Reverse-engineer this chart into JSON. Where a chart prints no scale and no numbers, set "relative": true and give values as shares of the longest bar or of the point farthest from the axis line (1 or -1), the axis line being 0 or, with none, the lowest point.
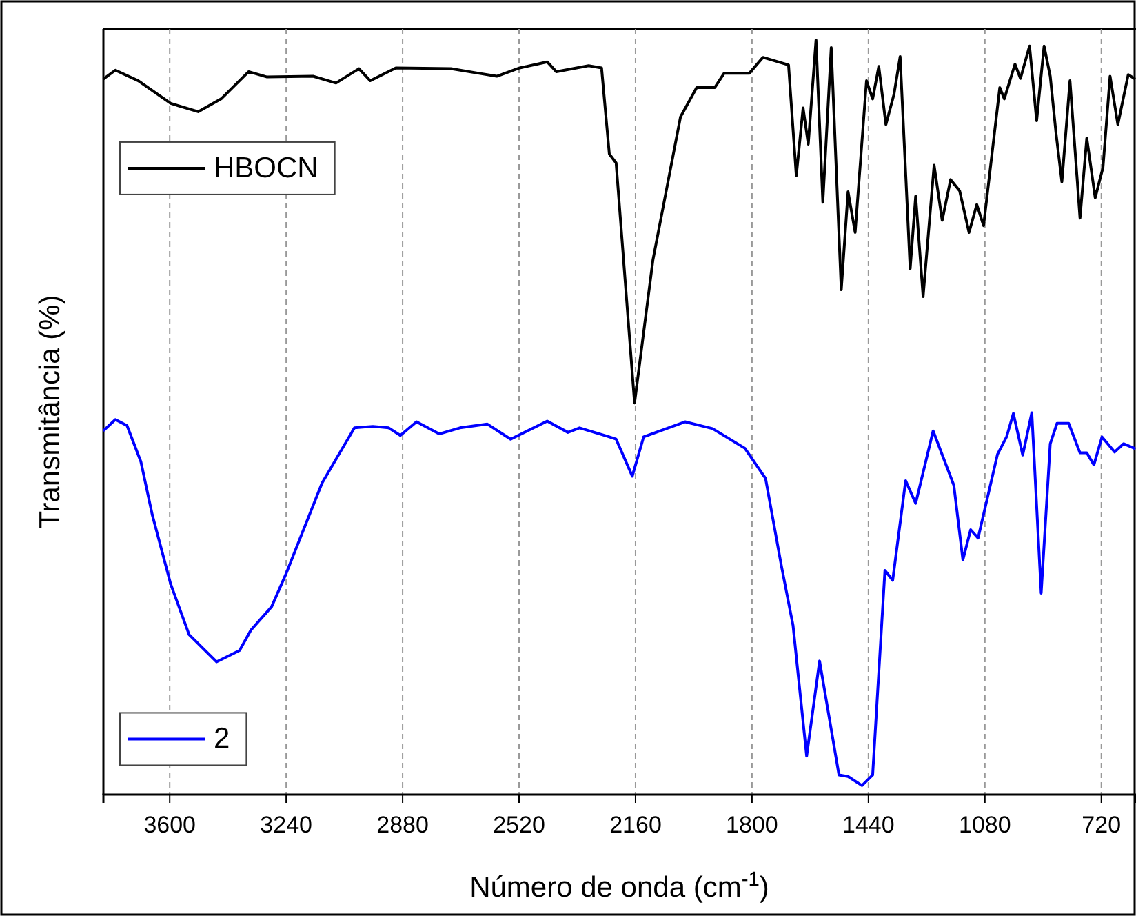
{
  "chart_data": {
    "type": "line",
    "relative": true,
    "xlabel": "Número de onda (cm$^{-1}$)",
    "ylabel": "Transmitância (%)",
    "xlim": [
      3805,
      615
    ],
    "xticks": [
      3600,
      3240,
      2880,
      2520,
      2160,
      1800,
      1440,
      1080,
      720
    ],
    "grid": "x",
    "legend": "left",
    "line_style": "solid",
    "marker": "none",
    "series": [
      {
        "name": "HBOCN",
        "color": "#000000",
        "x": [
          3803,
          3768,
          3697,
          3597,
          3512,
          3441,
          3356,
          3299,
          3157,
          3086,
          3015,
          2980,
          2901,
          2731,
          2646,
          2589,
          2518,
          2433,
          2405,
          2305,
          2265,
          2241,
          2220,
          2163,
          2106,
          2021,
          1971,
          1915,
          1886,
          1808,
          1766,
          1687,
          1663,
          1642,
          1626,
          1602,
          1581,
          1555,
          1524,
          1503,
          1481,
          1446,
          1427,
          1408,
          1386,
          1361,
          1342,
          1311,
          1294,
          1271,
          1237,
          1212,
          1186,
          1158,
          1129,
          1105,
          1084,
          1034,
          1020,
          987,
          970,
          942,
          920,
          897,
          878,
          860,
          842,
          817,
          786,
          765,
          739,
          715,
          693,
          669,
          637,
          618
        ],
        "values": [
          0.949,
          0.96,
          0.946,
          0.916,
          0.905,
          0.922,
          0.958,
          0.951,
          0.952,
          0.943,
          0.962,
          0.946,
          0.963,
          0.962,
          0.956,
          0.952,
          0.963,
          0.971,
          0.958,
          0.966,
          0.963,
          0.849,
          0.837,
          0.519,
          0.709,
          0.898,
          0.937,
          0.937,
          0.956,
          0.956,
          0.977,
          0.967,
          0.82,
          0.91,
          0.862,
          1,
          0.785,
          0.99,
          0.669,
          0.799,
          0.745,
          0.946,
          0.922,
          0.965,
          0.888,
          0.928,
          0.978,
          0.697,
          0.793,
          0.66,
          0.834,
          0.761,
          0.815,
          0.8,
          0.745,
          0.782,
          0.754,
          0.937,
          0.922,
          0.968,
          0.949,
          0.992,
          0.893,
          0.992,
          0.952,
          0.876,
          0.812,
          0.946,
          0.764,
          0.87,
          0.791,
          0.831,
          0.952,
          0.888,
          0.954,
          0.949
        ]
      },
      {
        "name": "2",
        "color": "#0000ff",
        "x": [
          3803,
          3768,
          3732,
          3689,
          3654,
          3597,
          3540,
          3455,
          3384,
          3349,
          3285,
          3242,
          3129,
          3029,
          2972,
          2923,
          2887,
          2837,
          2767,
          2703,
          2618,
          2546,
          2433,
          2369,
          2333,
          2248,
          2220,
          2170,
          2135,
          2007,
          1922,
          1822,
          1758,
          1709,
          1673,
          1631,
          1591,
          1531,
          1503,
          1460,
          1427,
          1389,
          1365,
          1325,
          1294,
          1240,
          1176,
          1148,
          1124,
          1101,
          1041,
          1013,
          992,
          963,
          935,
          906,
          878,
          857,
          821,
          786,
          765,
          743,
          718,
          679,
          651,
          618
        ],
        "values": [
          0.483,
          0.497,
          0.489,
          0.441,
          0.371,
          0.279,
          0.212,
          0.176,
          0.191,
          0.218,
          0.249,
          0.291,
          0.413,
          0.486,
          0.488,
          0.486,
          0.476,
          0.494,
          0.478,
          0.486,
          0.491,
          0.471,
          0.495,
          0.48,
          0.486,
          0.475,
          0.471,
          0.422,
          0.474,
          0.494,
          0.485,
          0.459,
          0.419,
          0.303,
          0.224,
          0.051,
          0.177,
          0.026,
          0.024,
          0.012,
          0.026,
          0.297,
          0.284,
          0.416,
          0.386,
          0.482,
          0.41,
          0.311,
          0.351,
          0.34,
          0.451,
          0.474,
          0.505,
          0.45,
          0.506,
          0.267,
          0.465,
          0.492,
          0.492,
          0.453,
          0.453,
          0.437,
          0.474,
          0.454,
          0.465,
          0.459
        ]
      }
    ]
  }
}
